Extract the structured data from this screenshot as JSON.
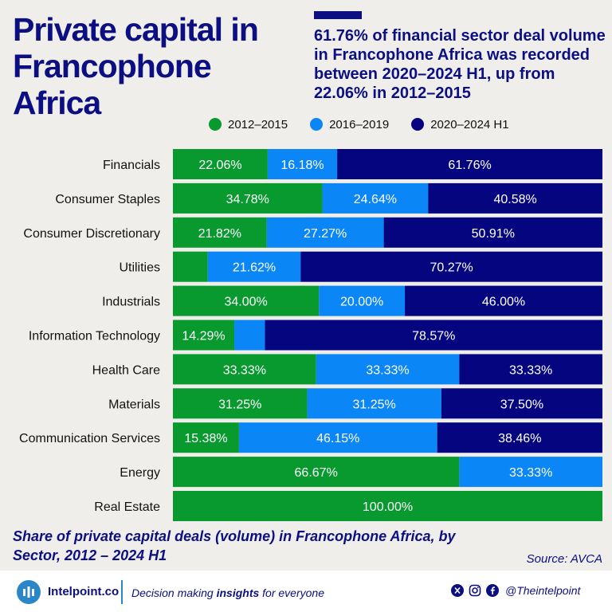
{
  "header": {
    "title": "Private capital in Francophone Africa",
    "headline": "61.76% of financial sector deal volume in Francophone Africa was recorded between 2020–2024 H1, up from 22.06% in 2012–2015"
  },
  "colors": {
    "green": "#089a2f",
    "light_blue": "#0a86f6",
    "navy": "#05067f",
    "title_navy": "#0b0f82",
    "background": "#f0eeea"
  },
  "chart_data": {
    "type": "bar",
    "orientation": "horizontal",
    "stacked": true,
    "percent_stacked": true,
    "legend_position": "top",
    "grid": false,
    "categories": [
      "Financials",
      "Consumer Staples",
      "Consumer Discretionary",
      "Utilities",
      "Industrials",
      "Information Technology",
      "Health Care",
      "Materials",
      "Communication Services",
      "Energy",
      "Real Estate"
    ],
    "series": [
      {
        "name": "2012–2015",
        "color": "#089a2f",
        "values": [
          22.06,
          34.78,
          21.82,
          8.11,
          34.0,
          14.29,
          33.33,
          31.25,
          15.38,
          66.67,
          100.0
        ],
        "labels": [
          "22.06%",
          "34.78%",
          "21.82%",
          "",
          "34.00%",
          "14.29%",
          "33.33%",
          "31.25%",
          "15.38%",
          "66.67%",
          "100.00%"
        ]
      },
      {
        "name": "2016–2019",
        "color": "#0a86f6",
        "values": [
          16.18,
          24.64,
          27.27,
          21.62,
          20.0,
          7.14,
          33.33,
          31.25,
          46.15,
          33.33,
          0
        ],
        "labels": [
          "16.18%",
          "24.64%",
          "27.27%",
          "21.62%",
          "20.00%",
          "",
          "33.33%",
          "31.25%",
          "46.15%",
          "33.33%",
          ""
        ]
      },
      {
        "name": "2020–2024 H1",
        "color": "#05067f",
        "values": [
          61.76,
          40.58,
          50.91,
          70.27,
          46.0,
          78.57,
          33.33,
          37.5,
          38.46,
          0,
          0
        ],
        "labels": [
          "61.76%",
          "40.58%",
          "50.91%",
          "70.27%",
          "46.00%",
          "78.57%",
          "33.33%",
          "37.50%",
          "38.46%",
          "",
          ""
        ]
      }
    ],
    "xlim": [
      0,
      100
    ]
  },
  "caption": "Share of private capital deals (volume) in Francophone Africa, by Sector, 2012 – 2024 H1",
  "source": "Source: AVCA",
  "footer": {
    "brand": "Intelpoint.co",
    "tagline_pre": "Decision making ",
    "tagline_bold": "insights",
    "tagline_post": " for everyone",
    "handle": "@Theintelpoint",
    "icons": [
      "x-icon",
      "instagram-icon",
      "facebook-icon"
    ]
  }
}
